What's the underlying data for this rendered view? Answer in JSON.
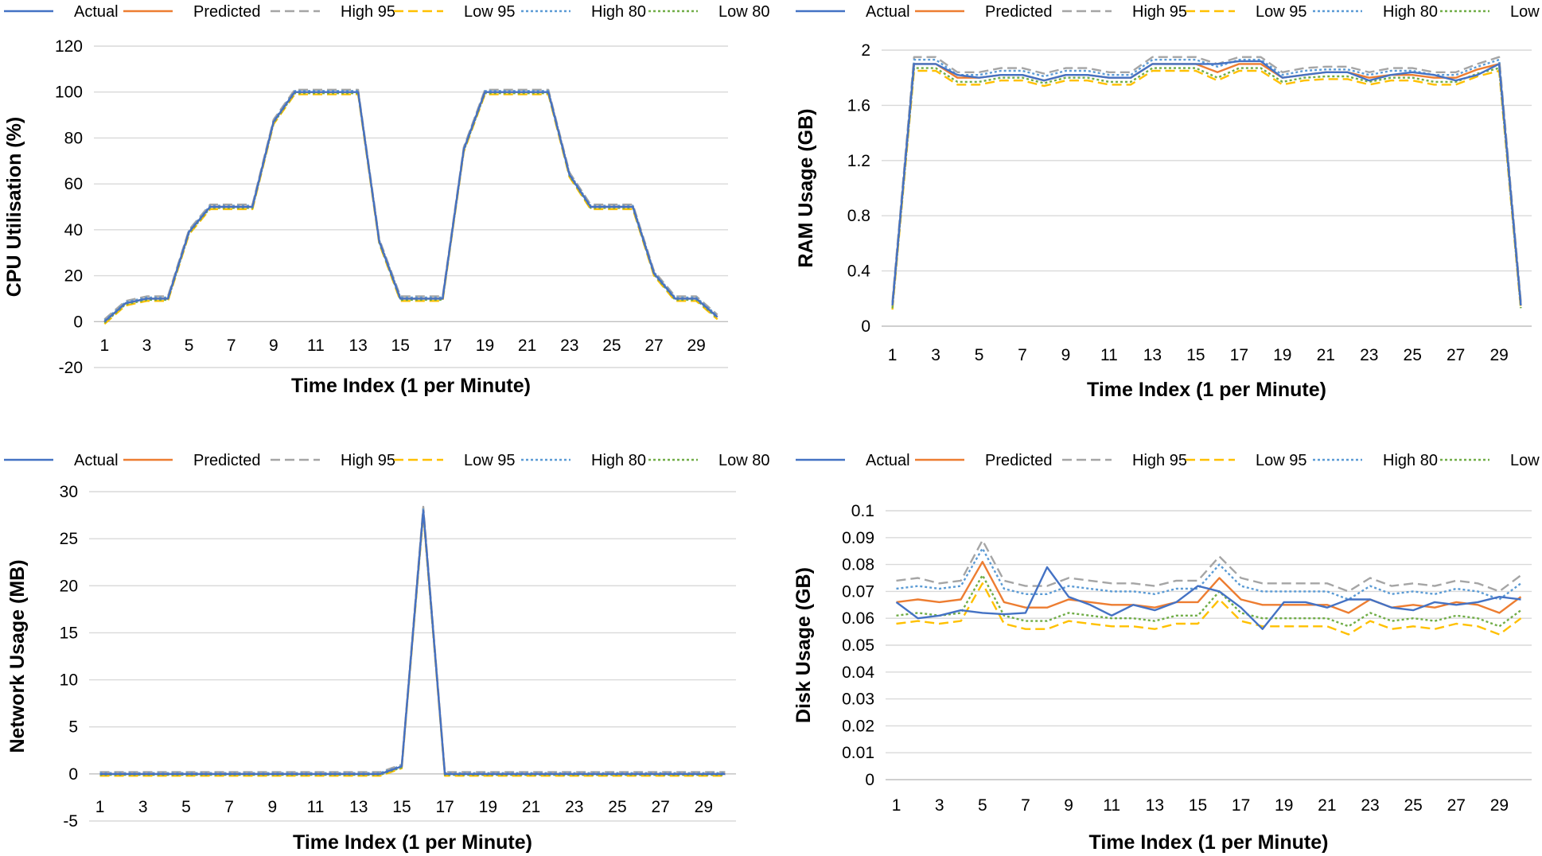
{
  "series_styles": [
    {
      "name": "Actual",
      "color": "#4472C4",
      "dash": "solid"
    },
    {
      "name": "Predicted",
      "color": "#ED7D31",
      "dash": "solid"
    },
    {
      "name": "High 95",
      "color": "#A5A5A5",
      "dash": "dashed"
    },
    {
      "name": "Low 95",
      "color": "#FFC000",
      "dash": "dashed"
    },
    {
      "name": "High 80",
      "color": "#5B9BD5",
      "dash": "dotted"
    },
    {
      "name": "Low 80",
      "color": "#70AD47",
      "dash": "dotted"
    }
  ],
  "chart_data": [
    {
      "type": "line",
      "ylabel": "CPU Utilisation (%)",
      "xlabel": "Time Index (1 per Minute)",
      "ylim": [
        -20,
        120
      ],
      "yticks": [
        "-20",
        "0",
        "20",
        "40",
        "60",
        "80",
        "100",
        "120"
      ],
      "xticks": [
        "1",
        "3",
        "5",
        "7",
        "9",
        "11",
        "13",
        "15",
        "17",
        "19",
        "21",
        "23",
        "25",
        "27",
        "29"
      ],
      "x": [
        1,
        2,
        3,
        4,
        5,
        6,
        7,
        8,
        9,
        10,
        11,
        12,
        13,
        14,
        15,
        16,
        17,
        18,
        19,
        20,
        21,
        22,
        23,
        24,
        25,
        26,
        27,
        28,
        29,
        30
      ],
      "series": [
        {
          "name": "Actual",
          "values": [
            0,
            8,
            10,
            10,
            39,
            50,
            50,
            50,
            87,
            100,
            100,
            100,
            100,
            35,
            10,
            10,
            10,
            75,
            100,
            100,
            100,
            100,
            64,
            50,
            50,
            50,
            21,
            10,
            10,
            2
          ]
        },
        {
          "name": "Predicted",
          "values": [
            0,
            8,
            10,
            10,
            39,
            50,
            50,
            50,
            87,
            100,
            100,
            100,
            100,
            35,
            10,
            10,
            10,
            75,
            100,
            100,
            100,
            100,
            64,
            50,
            50,
            50,
            21,
            10,
            10,
            2
          ]
        },
        {
          "name": "High 95",
          "values": [
            1,
            9,
            11,
            11,
            40,
            51,
            51,
            51,
            88,
            101,
            101,
            101,
            101,
            36,
            11,
            11,
            11,
            76,
            101,
            101,
            101,
            101,
            65,
            51,
            51,
            51,
            22,
            11,
            11,
            3
          ]
        },
        {
          "name": "Low 95",
          "values": [
            -1,
            7,
            9,
            9,
            38,
            49,
            49,
            49,
            86,
            99,
            99,
            99,
            99,
            34,
            9,
            9,
            9,
            74,
            99,
            99,
            99,
            99,
            63,
            49,
            49,
            49,
            20,
            9,
            9,
            1
          ]
        },
        {
          "name": "High 80",
          "values": [
            0.5,
            8.5,
            10.5,
            10.5,
            39.5,
            50.5,
            50.5,
            50.5,
            87.5,
            100.5,
            100.5,
            100.5,
            100.5,
            35.5,
            10.5,
            10.5,
            10.5,
            75.5,
            100.5,
            100.5,
            100.5,
            100.5,
            64.5,
            50.5,
            50.5,
            50.5,
            21.5,
            10.5,
            10.5,
            2.5
          ]
        },
        {
          "name": "Low 80",
          "values": [
            -0.5,
            7.5,
            9.5,
            9.5,
            38.5,
            49.5,
            49.5,
            49.5,
            86.5,
            99.5,
            99.5,
            99.5,
            99.5,
            34.5,
            9.5,
            9.5,
            9.5,
            74.5,
            99.5,
            99.5,
            99.5,
            99.5,
            63.5,
            49.5,
            49.5,
            49.5,
            20.5,
            9.5,
            9.5,
            1.5
          ]
        }
      ]
    },
    {
      "type": "line",
      "ylabel": "RAM Usage (GB)",
      "xlabel": "Time Index (1 per Minute)",
      "ylim": [
        0,
        2
      ],
      "yticks": [
        "0",
        "0.4",
        "0.8",
        "1.2",
        "1.6",
        "2"
      ],
      "xticks": [
        "1",
        "3",
        "5",
        "7",
        "9",
        "11",
        "13",
        "15",
        "17",
        "19",
        "21",
        "23",
        "25",
        "27",
        "29"
      ],
      "x": [
        1,
        2,
        3,
        4,
        5,
        6,
        7,
        8,
        9,
        10,
        11,
        12,
        13,
        14,
        15,
        16,
        17,
        18,
        19,
        20,
        21,
        22,
        23,
        24,
        25,
        26,
        27,
        28,
        29,
        30
      ],
      "series": [
        {
          "name": "Actual",
          "values": [
            0.15,
            1.9,
            1.9,
            1.82,
            1.8,
            1.82,
            1.82,
            1.78,
            1.82,
            1.82,
            1.8,
            1.8,
            1.9,
            1.9,
            1.9,
            1.9,
            1.92,
            1.92,
            1.8,
            1.82,
            1.84,
            1.84,
            1.78,
            1.82,
            1.84,
            1.82,
            1.78,
            1.82,
            1.9,
            0.15
          ]
        },
        {
          "name": "Predicted",
          "values": [
            0.15,
            1.9,
            1.9,
            1.8,
            1.8,
            1.82,
            1.82,
            1.78,
            1.82,
            1.82,
            1.8,
            1.8,
            1.9,
            1.9,
            1.9,
            1.84,
            1.9,
            1.9,
            1.8,
            1.82,
            1.84,
            1.84,
            1.8,
            1.82,
            1.82,
            1.8,
            1.8,
            1.86,
            1.9,
            0.15
          ]
        },
        {
          "name": "High 95",
          "values": [
            0.18,
            1.95,
            1.95,
            1.84,
            1.84,
            1.87,
            1.87,
            1.83,
            1.87,
            1.87,
            1.84,
            1.84,
            1.95,
            1.95,
            1.95,
            1.9,
            1.95,
            1.95,
            1.84,
            1.87,
            1.88,
            1.88,
            1.84,
            1.87,
            1.87,
            1.84,
            1.84,
            1.9,
            1.95,
            0.18
          ]
        },
        {
          "name": "Low 95",
          "values": [
            0.12,
            1.85,
            1.85,
            1.75,
            1.75,
            1.78,
            1.78,
            1.74,
            1.78,
            1.78,
            1.75,
            1.75,
            1.85,
            1.85,
            1.85,
            1.78,
            1.85,
            1.85,
            1.75,
            1.78,
            1.79,
            1.79,
            1.75,
            1.78,
            1.78,
            1.75,
            1.75,
            1.81,
            1.85,
            0.12
          ]
        },
        {
          "name": "High 80",
          "values": [
            0.17,
            1.93,
            1.93,
            1.82,
            1.82,
            1.85,
            1.85,
            1.81,
            1.85,
            1.85,
            1.82,
            1.82,
            1.93,
            1.93,
            1.93,
            1.88,
            1.93,
            1.93,
            1.82,
            1.85,
            1.86,
            1.86,
            1.82,
            1.85,
            1.85,
            1.82,
            1.82,
            1.88,
            1.93,
            0.17
          ]
        },
        {
          "name": "Low 80",
          "values": [
            0.13,
            1.87,
            1.87,
            1.77,
            1.77,
            1.8,
            1.8,
            1.76,
            1.8,
            1.8,
            1.77,
            1.77,
            1.87,
            1.87,
            1.87,
            1.8,
            1.87,
            1.87,
            1.77,
            1.8,
            1.81,
            1.81,
            1.77,
            1.8,
            1.8,
            1.77,
            1.77,
            1.83,
            1.87,
            0.13
          ]
        }
      ]
    },
    {
      "type": "line",
      "ylabel": "Network Usage (MB)",
      "xlabel": "Time Index (1 per Minute)",
      "ylim": [
        -5,
        30
      ],
      "yticks": [
        "-5",
        "0",
        "5",
        "10",
        "15",
        "20",
        "25",
        "30"
      ],
      "xticks": [
        "1",
        "3",
        "5",
        "7",
        "9",
        "11",
        "13",
        "15",
        "17",
        "19",
        "21",
        "23",
        "25",
        "27",
        "29"
      ],
      "x": [
        1,
        2,
        3,
        4,
        5,
        6,
        7,
        8,
        9,
        10,
        11,
        12,
        13,
        14,
        15,
        16,
        17,
        18,
        19,
        20,
        21,
        22,
        23,
        24,
        25,
        26,
        27,
        28,
        29,
        30
      ],
      "series": [
        {
          "name": "Actual",
          "values": [
            0,
            0,
            0,
            0,
            0,
            0,
            0,
            0,
            0,
            0,
            0,
            0,
            0,
            0,
            0.8,
            28,
            0,
            0,
            0,
            0,
            0,
            0,
            0,
            0,
            0,
            0,
            0,
            0,
            0,
            0
          ]
        },
        {
          "name": "Predicted",
          "values": [
            0,
            0,
            0,
            0,
            0,
            0,
            0,
            0,
            0,
            0,
            0,
            0,
            0,
            0,
            0.8,
            28,
            0,
            0,
            0,
            0,
            0,
            0,
            0,
            0,
            0,
            0,
            0,
            0,
            0,
            0
          ]
        },
        {
          "name": "High 95",
          "values": [
            0.2,
            0.2,
            0.2,
            0.2,
            0.2,
            0.2,
            0.2,
            0.2,
            0.2,
            0.2,
            0.2,
            0.2,
            0.2,
            0.2,
            1,
            28.4,
            0.2,
            0.2,
            0.2,
            0.2,
            0.2,
            0.2,
            0.2,
            0.2,
            0.2,
            0.2,
            0.2,
            0.2,
            0.2,
            0.2
          ]
        },
        {
          "name": "Low 95",
          "values": [
            -0.2,
            -0.2,
            -0.2,
            -0.2,
            -0.2,
            -0.2,
            -0.2,
            -0.2,
            -0.2,
            -0.2,
            -0.2,
            -0.2,
            -0.2,
            -0.2,
            0.6,
            27.6,
            -0.2,
            -0.2,
            -0.2,
            -0.2,
            -0.2,
            -0.2,
            -0.2,
            -0.2,
            -0.2,
            -0.2,
            -0.2,
            -0.2,
            -0.2,
            -0.2
          ]
        },
        {
          "name": "High 80",
          "values": [
            0.1,
            0.1,
            0.1,
            0.1,
            0.1,
            0.1,
            0.1,
            0.1,
            0.1,
            0.1,
            0.1,
            0.1,
            0.1,
            0.1,
            0.9,
            28.2,
            0.1,
            0.1,
            0.1,
            0.1,
            0.1,
            0.1,
            0.1,
            0.1,
            0.1,
            0.1,
            0.1,
            0.1,
            0.1,
            0.1
          ]
        },
        {
          "name": "Low 80",
          "values": [
            -0.1,
            -0.1,
            -0.1,
            -0.1,
            -0.1,
            -0.1,
            -0.1,
            -0.1,
            -0.1,
            -0.1,
            -0.1,
            -0.1,
            -0.1,
            -0.1,
            0.7,
            27.8,
            -0.1,
            -0.1,
            -0.1,
            -0.1,
            -0.1,
            -0.1,
            -0.1,
            -0.1,
            -0.1,
            -0.1,
            -0.1,
            -0.1,
            -0.1,
            -0.1
          ]
        }
      ]
    },
    {
      "type": "line",
      "ylabel": "Disk Usage (GB)",
      "xlabel": "Time Index (1 per Minute)",
      "ylim": [
        0,
        0.1
      ],
      "yticks": [
        "0",
        "0.01",
        "0.02",
        "0.03",
        "0.04",
        "0.05",
        "0.06",
        "0.07",
        "0.08",
        "0.09",
        "0.1"
      ],
      "xticks": [
        "1",
        "3",
        "5",
        "7",
        "9",
        "11",
        "13",
        "15",
        "17",
        "19",
        "21",
        "23",
        "25",
        "27",
        "29"
      ],
      "x": [
        1,
        2,
        3,
        4,
        5,
        6,
        7,
        8,
        9,
        10,
        11,
        12,
        13,
        14,
        15,
        16,
        17,
        18,
        19,
        20,
        21,
        22,
        23,
        24,
        25,
        26,
        27,
        28,
        29,
        30
      ],
      "series": [
        {
          "name": "Actual",
          "values": [
            0.066,
            0.06,
            0.061,
            0.063,
            0.062,
            0.0615,
            0.062,
            0.079,
            0.068,
            0.065,
            0.061,
            0.065,
            0.063,
            0.066,
            0.072,
            0.07,
            0.064,
            0.056,
            0.066,
            0.066,
            0.064,
            0.067,
            0.067,
            0.064,
            0.063,
            0.066,
            0.065,
            0.066,
            0.068,
            0.067
          ]
        },
        {
          "name": "Predicted",
          "values": [
            0.066,
            0.067,
            0.066,
            0.067,
            0.081,
            0.066,
            0.064,
            0.064,
            0.067,
            0.066,
            0.065,
            0.065,
            0.064,
            0.066,
            0.066,
            0.075,
            0.067,
            0.065,
            0.065,
            0.065,
            0.065,
            0.062,
            0.067,
            0.064,
            0.065,
            0.064,
            0.066,
            0.065,
            0.062,
            0.068
          ]
        },
        {
          "name": "High 95",
          "values": [
            0.074,
            0.075,
            0.073,
            0.074,
            0.089,
            0.074,
            0.072,
            0.072,
            0.075,
            0.074,
            0.073,
            0.073,
            0.072,
            0.074,
            0.074,
            0.083,
            0.075,
            0.073,
            0.073,
            0.073,
            0.073,
            0.07,
            0.075,
            0.072,
            0.073,
            0.072,
            0.074,
            0.073,
            0.07,
            0.076
          ]
        },
        {
          "name": "Low 95",
          "values": [
            0.058,
            0.059,
            0.058,
            0.059,
            0.073,
            0.058,
            0.056,
            0.056,
            0.059,
            0.058,
            0.057,
            0.057,
            0.056,
            0.058,
            0.058,
            0.067,
            0.059,
            0.057,
            0.057,
            0.057,
            0.057,
            0.054,
            0.059,
            0.056,
            0.057,
            0.056,
            0.058,
            0.057,
            0.054,
            0.06
          ]
        },
        {
          "name": "High 80",
          "values": [
            0.071,
            0.072,
            0.071,
            0.072,
            0.086,
            0.071,
            0.069,
            0.069,
            0.072,
            0.071,
            0.07,
            0.07,
            0.069,
            0.071,
            0.071,
            0.08,
            0.072,
            0.07,
            0.07,
            0.07,
            0.07,
            0.067,
            0.072,
            0.069,
            0.07,
            0.069,
            0.071,
            0.07,
            0.067,
            0.073
          ]
        },
        {
          "name": "Low 80",
          "values": [
            0.061,
            0.062,
            0.061,
            0.062,
            0.076,
            0.061,
            0.059,
            0.059,
            0.062,
            0.061,
            0.06,
            0.06,
            0.059,
            0.061,
            0.061,
            0.07,
            0.062,
            0.06,
            0.06,
            0.06,
            0.06,
            0.057,
            0.062,
            0.059,
            0.06,
            0.059,
            0.061,
            0.06,
            0.057,
            0.063
          ]
        }
      ]
    }
  ]
}
